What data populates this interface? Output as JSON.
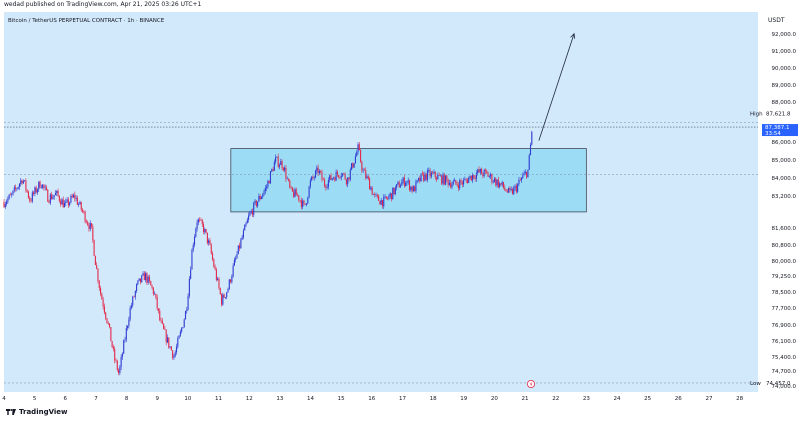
{
  "header": {
    "publisher_line": "wedad published on TradingView.com, Apr 21, 2025 03:26 UTC+1"
  },
  "footer": {
    "brand": "TradingView"
  },
  "colors": {
    "background": "#d2e8fb",
    "up": "#2f3bd1",
    "down": "#e3294b",
    "box_fill": "#9ddcf5",
    "box_stroke": "#3f4a5a",
    "price_tag": "#2962ff"
  },
  "chart_data": {
    "type": "candlestick",
    "title": "Bitcoin / TetherUS PERPETUAL CONTRACT · 1h · BINANCE",
    "currency": "USDT",
    "ylim": [
      74000,
      93200
    ],
    "y_ticks": [
      "92,000.0",
      "91,000.0",
      "90,000.0",
      "89,000.0",
      "88,000.0",
      "86,000.0",
      "85,000.0",
      "84,000.0",
      "83,200.0",
      "81,600.0",
      "80,800.0",
      "80,000.0",
      "79,250.0",
      "78,500.0",
      "77,700.0",
      "76,900.0",
      "76,100.0",
      "75,400.0",
      "74,700.0",
      "74,000.0"
    ],
    "x_ticks": [
      "4",
      "5",
      "6",
      "7",
      "8",
      "9",
      "10",
      "11",
      "12",
      "13",
      "14",
      "15",
      "16",
      "17",
      "18",
      "19",
      "20",
      "21",
      "22",
      "23",
      "24",
      "25",
      "26",
      "27",
      "28"
    ],
    "high_label": "High",
    "high_value": "87,621.8",
    "low_label": "Low",
    "low_value": "74,457.0",
    "current_price": "87,387.1",
    "countdown": "33:54",
    "range_box": {
      "x_start": 11.4,
      "x_end": 23.0,
      "y_low": 83100,
      "y_high": 86300
    },
    "projection_arrow": {
      "from_x": 21.45,
      "from_y": 86700,
      "to_x": 22.6,
      "to_y": 92100
    },
    "path": [
      [
        4.0,
        83600
      ],
      [
        4.25,
        83900
      ],
      [
        4.6,
        84800
      ],
      [
        4.85,
        83700
      ],
      [
        5.2,
        84600
      ],
      [
        5.45,
        83800
      ],
      [
        5.7,
        84000
      ],
      [
        6.0,
        83400
      ],
      [
        6.3,
        83900
      ],
      [
        6.6,
        83000
      ],
      [
        6.85,
        82200
      ],
      [
        7.0,
        80400
      ],
      [
        7.15,
        79000
      ],
      [
        7.4,
        77400
      ],
      [
        7.6,
        75700
      ],
      [
        7.75,
        74900
      ],
      [
        7.9,
        76300
      ],
      [
        8.1,
        78100
      ],
      [
        8.35,
        79400
      ],
      [
        8.6,
        79900
      ],
      [
        8.9,
        79000
      ],
      [
        9.1,
        77500
      ],
      [
        9.35,
        76500
      ],
      [
        9.55,
        75800
      ],
      [
        9.75,
        76900
      ],
      [
        9.95,
        78200
      ],
      [
        10.15,
        81400
      ],
      [
        10.3,
        82700
      ],
      [
        10.5,
        82300
      ],
      [
        10.7,
        81400
      ],
      [
        10.9,
        80000
      ],
      [
        11.1,
        78600
      ],
      [
        11.3,
        79200
      ],
      [
        11.5,
        80400
      ],
      [
        11.75,
        81700
      ],
      [
        12.0,
        82900
      ],
      [
        12.25,
        83600
      ],
      [
        12.55,
        84300
      ],
      [
        12.85,
        85700
      ],
      [
        13.1,
        85500
      ],
      [
        13.35,
        84100
      ],
      [
        13.6,
        83900
      ],
      [
        13.8,
        83300
      ],
      [
        14.0,
        84600
      ],
      [
        14.25,
        85200
      ],
      [
        14.45,
        84500
      ],
      [
        14.75,
        84900
      ],
      [
        15.0,
        85100
      ],
      [
        15.2,
        84700
      ],
      [
        15.4,
        85600
      ],
      [
        15.55,
        86300
      ],
      [
        15.7,
        85200
      ],
      [
        15.9,
        84600
      ],
      [
        16.1,
        83800
      ],
      [
        16.4,
        83600
      ],
      [
        16.65,
        84000
      ],
      [
        16.9,
        84500
      ],
      [
        17.1,
        84700
      ],
      [
        17.35,
        84200
      ],
      [
        17.6,
        84800
      ],
      [
        17.85,
        85000
      ],
      [
        18.1,
        84900
      ],
      [
        18.4,
        84700
      ],
      [
        18.7,
        84500
      ],
      [
        19.0,
        84600
      ],
      [
        19.25,
        84900
      ],
      [
        19.5,
        85100
      ],
      [
        19.75,
        85000
      ],
      [
        20.0,
        84700
      ],
      [
        20.25,
        84400
      ],
      [
        20.5,
        84000
      ],
      [
        20.7,
        84300
      ],
      [
        20.9,
        84800
      ],
      [
        21.1,
        85200
      ],
      [
        21.25,
        87600
      ]
    ]
  }
}
